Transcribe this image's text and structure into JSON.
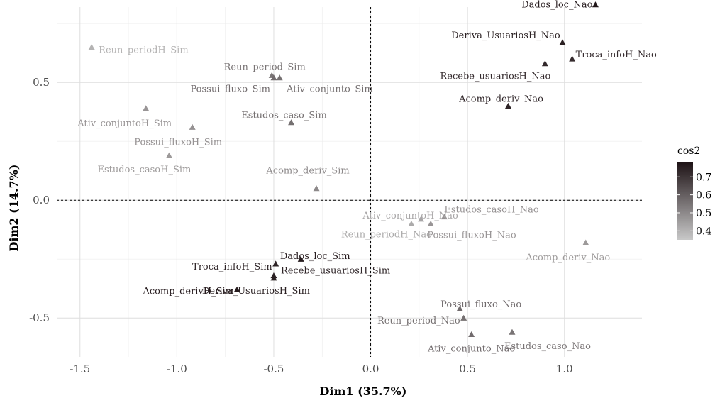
{
  "chart_data": {
    "type": "scatter",
    "xlabel": "Dim1 (35.7%)",
    "ylabel": "Dim2 (14.7%)",
    "xlim": [
      -1.62,
      1.4
    ],
    "ylim": [
      -0.665,
      0.82
    ],
    "xticks": [
      -1.5,
      -1.0,
      -0.5,
      0.0,
      0.5,
      1.0
    ],
    "yticks": [
      -0.5,
      0.0,
      0.5
    ],
    "xtick_labels": [
      "-1.5",
      "-1.0",
      "-0.5",
      "0.0",
      "0.5",
      "1.0"
    ],
    "ytick_labels": [
      "-0.5",
      "0.0",
      "0.5"
    ],
    "grid": true,
    "reference_lines": {
      "x": 0.0,
      "y": 0.0,
      "style": "dashed"
    },
    "legend": {
      "title": "cos2",
      "placement": "right",
      "ticks": [
        0.7,
        0.6,
        0.5,
        0.4
      ],
      "tick_labels": [
        "0.7",
        "0.6",
        "0.5",
        "0.4"
      ],
      "range": [
        0.35,
        0.78
      ],
      "color_low": "#c8c8c8",
      "color_high": "#1e1316"
    },
    "points": [
      {
        "label": "Dados_loc_Nao",
        "x": 1.16,
        "y": 0.83,
        "cos2": 0.77
      },
      {
        "label": "Deriva_UsuariosH_Nao",
        "x": 0.99,
        "y": 0.67,
        "cos2": 0.75
      },
      {
        "label": "Troca_infoH_Nao",
        "x": 1.04,
        "y": 0.6,
        "cos2": 0.72
      },
      {
        "label": "Recebe_usuariosH_Nao",
        "x": 0.9,
        "y": 0.58,
        "cos2": 0.73
      },
      {
        "label": "Acomp_deriv_Nao",
        "x": 0.71,
        "y": 0.4,
        "cos2": 0.74
      },
      {
        "label": "Reun_periodH_Sim",
        "x": -1.44,
        "y": 0.65,
        "cos2": 0.4
      },
      {
        "label": "Reun_period_Sim",
        "x": -0.51,
        "y": 0.53,
        "cos2": 0.55
      },
      {
        "label": "Possui_fluxo_Sim",
        "x": -0.5,
        "y": 0.52,
        "cos2": 0.57
      },
      {
        "label": "Ativ_conjunto_Sim",
        "x": -0.47,
        "y": 0.52,
        "cos2": 0.56
      },
      {
        "label": "Estudos_caso_Sim",
        "x": -0.41,
        "y": 0.33,
        "cos2": 0.56
      },
      {
        "label": "Ativ_conjuntoH_Sim",
        "x": -1.16,
        "y": 0.39,
        "cos2": 0.47
      },
      {
        "label": "Possui_fluxoH_Sim",
        "x": -0.92,
        "y": 0.31,
        "cos2": 0.48
      },
      {
        "label": "Estudos_casoH_Sim",
        "x": -1.04,
        "y": 0.19,
        "cos2": 0.46
      },
      {
        "label": "Acomp_deriv_Sim",
        "x": -0.28,
        "y": 0.05,
        "cos2": 0.5
      },
      {
        "label": "Ativ_conjuntoH_Nao",
        "x": 0.26,
        "y": -0.08,
        "cos2": 0.43
      },
      {
        "label": "Estudos_casoH_Nao",
        "x": 0.38,
        "y": -0.07,
        "cos2": 0.48
      },
      {
        "label": "Reun_periodH_Nao",
        "x": 0.21,
        "y": -0.1,
        "cos2": 0.42
      },
      {
        "label": "Possui_fluxoH_Nao",
        "x": 0.31,
        "y": -0.1,
        "cos2": 0.47
      },
      {
        "label": "Acomp_deriv_Nao",
        "x": 1.11,
        "y": -0.18,
        "cos2": 0.46
      },
      {
        "label": "Dados_loc_Sim",
        "x": -0.36,
        "y": -0.25,
        "cos2": 0.76
      },
      {
        "label": "Troca_infoH_Sim",
        "x": -0.49,
        "y": -0.27,
        "cos2": 0.74
      },
      {
        "label": "Recebe_usuariosH_Sim",
        "x": -0.5,
        "y": -0.32,
        "cos2": 0.74
      },
      {
        "label": "Deriva_UsuariosH_Sim",
        "x": -0.5,
        "y": -0.33,
        "cos2": 0.75
      },
      {
        "label": "Acomp_derivH_Sim",
        "x": -0.69,
        "y": -0.38,
        "cos2": 0.76
      },
      {
        "label": "Possui_fluxo_Nao",
        "x": 0.46,
        "y": -0.46,
        "cos2": 0.57
      },
      {
        "label": "Reun_period_Nao",
        "x": 0.48,
        "y": -0.5,
        "cos2": 0.56
      },
      {
        "label": "Ativ_conjunto_Nao",
        "x": 0.52,
        "y": -0.57,
        "cos2": 0.57
      },
      {
        "label": "Estudos_caso_Nao",
        "x": 0.73,
        "y": -0.56,
        "cos2": 0.55
      }
    ]
  }
}
